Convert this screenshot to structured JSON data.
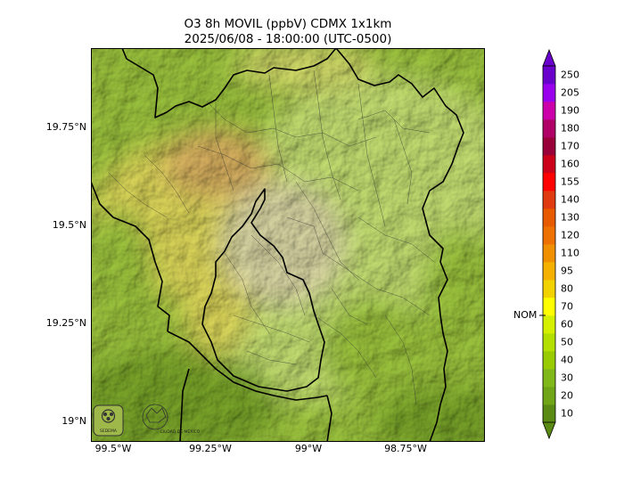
{
  "title": {
    "line1": "O3 8h MOVIL (ppbV) CDMX 1x1km",
    "line2": "2025/06/08 - 18:00:00 (UTC-0500)"
  },
  "map": {
    "lat_labels": [
      "19.75°N",
      "19.5°N",
      "19.25°N",
      "19°N"
    ],
    "lon_labels": [
      "99.5°W",
      "99.25°W",
      "99°W",
      "98.75°W"
    ],
    "logos": [
      "SEDEMA",
      "CIUDAD DE MÉXICO"
    ],
    "palette": {
      "green_dark": "#7aa62a",
      "green": "#9cc43e",
      "light_green": "#c4df72",
      "yellow_green": "#cfd868",
      "yellow": "#ddd75a",
      "orange_hint": "#d8b060",
      "urban": "#d9d6a4"
    }
  },
  "colorbar": {
    "levels": [
      "10",
      "20",
      "30",
      "40",
      "50",
      "60",
      "70",
      "80",
      "95",
      "110",
      "120",
      "130",
      "140",
      "155",
      "160",
      "170",
      "180",
      "190",
      "205",
      "250"
    ],
    "colors": [
      "#5a8a14",
      "#6fa517",
      "#80b81a",
      "#99cc00",
      "#b3e000",
      "#d4f000",
      "#ffff00",
      "#f2d200",
      "#f5b000",
      "#f09000",
      "#ee7000",
      "#e85a00",
      "#e03a10",
      "#ff0000",
      "#cc0018",
      "#99003a",
      "#b00068",
      "#cc00aa",
      "#9900ee",
      "#6a00cc"
    ],
    "nom_label": "NOM",
    "nom_value": 65
  }
}
